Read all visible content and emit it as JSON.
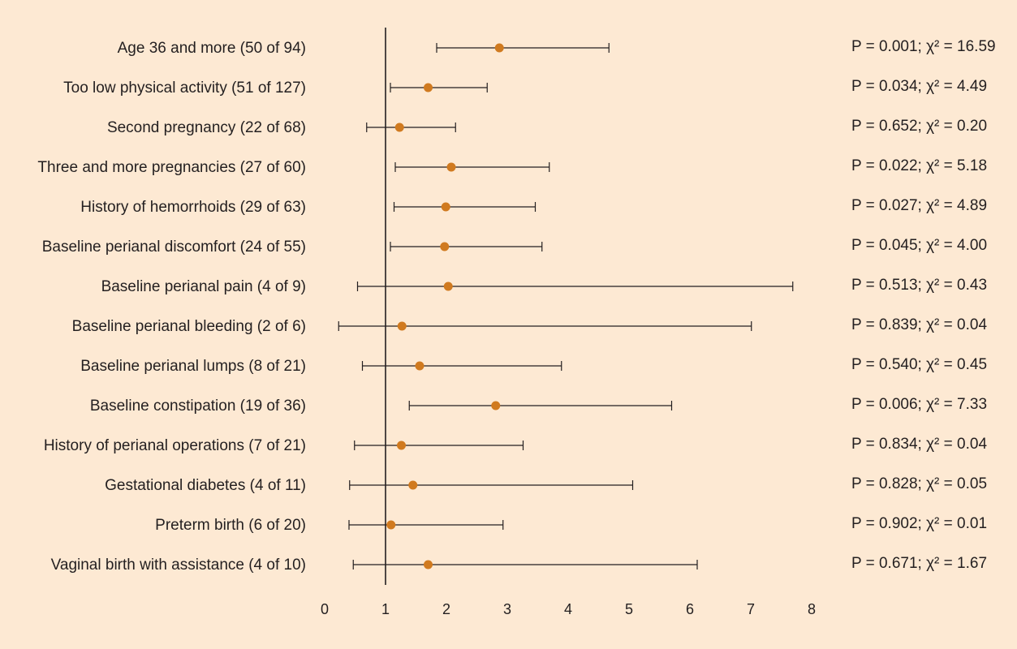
{
  "chart_data": {
    "type": "forest",
    "xlim": [
      0,
      8
    ],
    "x_ticks": [
      "0",
      "1",
      "2",
      "3",
      "4",
      "5",
      "6",
      "7",
      "8"
    ],
    "reference_line": 1,
    "point_color": "#d07a1f",
    "background_color": "#fde9d3",
    "rows": [
      {
        "label": "Age 36 and more (50 of 94)",
        "estimate": 2.87,
        "lower": 1.84,
        "upper": 4.67,
        "stats": "P = 0.001; χ² = 16.59"
      },
      {
        "label": "Too low physical activity (51 of 127)",
        "estimate": 1.7,
        "lower": 1.08,
        "upper": 2.67,
        "stats": "P = 0.034; χ² = 4.49"
      },
      {
        "label": "Second pregnancy (22 of 68)",
        "estimate": 1.23,
        "lower": 0.69,
        "upper": 2.15,
        "stats": "P = 0.652; χ² = 0.20"
      },
      {
        "label": "Three and more pregnancies (27 of 60)",
        "estimate": 2.08,
        "lower": 1.16,
        "upper": 3.69,
        "stats": "P = 0.022; χ² = 5.18"
      },
      {
        "label": "History of hemorrhoids (29 of 63)",
        "estimate": 1.99,
        "lower": 1.14,
        "upper": 3.46,
        "stats": "P = 0.027; χ² = 4.89"
      },
      {
        "label": "Baseline perianal discomfort (24 of 55)",
        "estimate": 1.97,
        "lower": 1.08,
        "upper": 3.57,
        "stats": "P = 0.045; χ² = 4.00"
      },
      {
        "label": "Baseline perianal pain (4 of 9)",
        "estimate": 2.03,
        "lower": 0.54,
        "upper": 7.69,
        "stats": "P = 0.513; χ² = 0.43"
      },
      {
        "label": "Baseline perianal bleeding (2 of 6)",
        "estimate": 1.27,
        "lower": 0.23,
        "upper": 7.01,
        "stats": "P = 0.839; χ² = 0.04"
      },
      {
        "label": "Baseline perianal lumps (8 of 21)",
        "estimate": 1.56,
        "lower": 0.62,
        "upper": 3.89,
        "stats": "P = 0.540; χ² = 0.45"
      },
      {
        "label": "Baseline constipation (19 of 36)",
        "estimate": 2.81,
        "lower": 1.39,
        "upper": 5.7,
        "stats": "P = 0.006; χ² = 7.33"
      },
      {
        "label": "History of perianal operations (7 of 21)",
        "estimate": 1.26,
        "lower": 0.49,
        "upper": 3.26,
        "stats": "P = 0.834; χ² = 0.04"
      },
      {
        "label": "Gestational diabetes (4 of 11)",
        "estimate": 1.45,
        "lower": 0.41,
        "upper": 5.06,
        "stats": "P = 0.828; χ² = 0.05"
      },
      {
        "label": "Preterm birth (6 of 20)",
        "estimate": 1.09,
        "lower": 0.4,
        "upper": 2.93,
        "stats": "P = 0.902; χ² = 0.01"
      },
      {
        "label": "Vaginal birth with assistance (4 of 10)",
        "estimate": 1.7,
        "lower": 0.47,
        "upper": 6.12,
        "stats": "P = 0.671; χ² = 1.67"
      }
    ]
  }
}
